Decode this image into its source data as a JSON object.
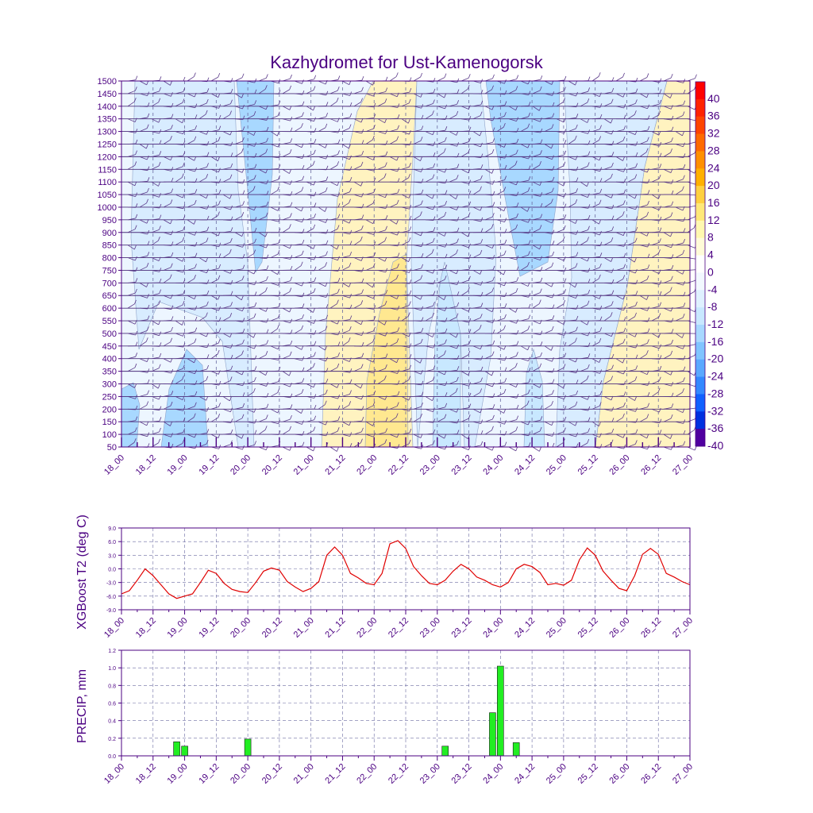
{
  "title": "Kazhydromet for Ust-Kamenogorsk",
  "time_ticks": [
    "18_00",
    "18_12",
    "19_00",
    "19_12",
    "20_00",
    "20_12",
    "21_00",
    "21_12",
    "22_00",
    "22_12",
    "23_00",
    "23_12",
    "24_00",
    "24_12",
    "25_00",
    "25_12",
    "26_00",
    "26_12",
    "27_00"
  ],
  "colors": {
    "axis": "#4b0082",
    "t2_line": "#e00000",
    "precip_bar": "#22ee22",
    "grid": "#6a6aa0",
    "wind_barb": "#5b3a8a"
  },
  "chart_data": [
    {
      "type": "heatmap",
      "title": "Kazhydromet for Ust-Kamenogorsk",
      "description_levels": "vertical axis pressure/height levels",
      "y_ticks": [
        "50",
        "100",
        "150",
        "200",
        "250",
        "300",
        "350",
        "400",
        "450",
        "500",
        "550",
        "600",
        "650",
        "700",
        "750",
        "800",
        "850",
        "900",
        "950",
        "1000",
        "1050",
        "1100",
        "1150",
        "1200",
        "1250",
        "1300",
        "1350",
        "1400",
        "1450",
        "1500"
      ],
      "ylim": [
        50,
        1500
      ],
      "x_ticks": [
        "18_00",
        "18_12",
        "19_00",
        "19_12",
        "20_00",
        "20_12",
        "21_00",
        "21_12",
        "22_00",
        "22_12",
        "23_00",
        "23_12",
        "24_00",
        "24_12",
        "25_00",
        "25_12",
        "26_00",
        "26_12",
        "27_00"
      ],
      "colorbar_labels": [
        "40",
        "36",
        "32",
        "28",
        "24",
        "20",
        "16",
        "12",
        "8",
        "4",
        "0",
        "-4",
        "-8",
        "-12",
        "-16",
        "-20",
        "-24",
        "-28",
        "-32",
        "-36",
        "-40"
      ],
      "colorbar_colors": [
        "#ff0000",
        "#ff2200",
        "#ff4400",
        "#ff6a00",
        "#ff9000",
        "#ffb000",
        "#ffd040",
        "#ffe878",
        "#fff8b0",
        "#fffbd8",
        "#ffffff",
        "#f2f8ff",
        "#dff1ff",
        "#c8e8ff",
        "#a8d8ff",
        "#80c4ff",
        "#5aa8ff",
        "#3388ff",
        "#1060ff",
        "#0030e0",
        "#5000a0"
      ],
      "grid": true,
      "wind_barbs": true
    },
    {
      "type": "line",
      "ylabel": "XGBoost T2 (deg C)",
      "ylim": [
        -9.0,
        9.0
      ],
      "y_ticks": [
        "9.0",
        "6.0",
        "3.0",
        "0.0",
        "-3.0",
        "-6.0",
        "-9.0"
      ],
      "x_ticks": [
        "18_00",
        "18_12",
        "19_00",
        "19_12",
        "20_00",
        "20_12",
        "21_00",
        "21_12",
        "22_00",
        "22_12",
        "23_00",
        "23_12",
        "24_00",
        "24_12",
        "25_00",
        "25_12",
        "26_00",
        "26_12",
        "27_00"
      ],
      "grid": true,
      "series": [
        {
          "x_hours": [
            0,
            3,
            6,
            9,
            12,
            15,
            18,
            21,
            24,
            27,
            30,
            33,
            36,
            39,
            42,
            45,
            48,
            51,
            54,
            57,
            60,
            63,
            66,
            69,
            72,
            75,
            78,
            81,
            84,
            87,
            90,
            93,
            96,
            99,
            102,
            105,
            108,
            111,
            114,
            117,
            120,
            123,
            126,
            129,
            132,
            135,
            138,
            141,
            144,
            147,
            150,
            153,
            156,
            159,
            162,
            165,
            168,
            171,
            174,
            177,
            180,
            183,
            186,
            189,
            192,
            195,
            198,
            201,
            204,
            207,
            210,
            213,
            216
          ],
          "values": [
            -5.5,
            -4.8,
            -2.5,
            0.0,
            -1.5,
            -3.5,
            -5.5,
            -6.5,
            -6.0,
            -5.5,
            -3.0,
            -0.3,
            -1.0,
            -3.2,
            -4.5,
            -5.0,
            -5.2,
            -3.0,
            -0.5,
            0.2,
            -0.3,
            -2.8,
            -4.0,
            -5.0,
            -4.3,
            -2.8,
            3.0,
            4.8,
            3.0,
            -1.0,
            -2.0,
            -3.2,
            -3.5,
            -1.0,
            5.5,
            6.2,
            4.5,
            0.5,
            -1.5,
            -3.2,
            -3.5,
            -2.5,
            -0.5,
            1.0,
            0.0,
            -1.8,
            -2.5,
            -3.5,
            -4.0,
            -3.0,
            0.0,
            1.0,
            0.5,
            -0.8,
            -3.5,
            -3.2,
            -3.6,
            -2.5,
            2.0,
            4.6,
            3.0,
            -0.5,
            -2.5,
            -4.3,
            -4.8,
            -1.5,
            3.2,
            4.5,
            3.2,
            -1.0,
            -1.8,
            -2.8,
            -3.5
          ]
        }
      ]
    },
    {
      "type": "bar",
      "ylabel": "PRECIP, mm",
      "ylim": [
        0.0,
        1.2
      ],
      "y_ticks": [
        "1.2",
        "1.0",
        "0.8",
        "0.6",
        "0.4",
        "0.2",
        "0.0"
      ],
      "x_ticks": [
        "18_00",
        "18_12",
        "19_00",
        "19_12",
        "20_00",
        "20_12",
        "21_00",
        "21_12",
        "22_00",
        "22_12",
        "23_00",
        "23_12",
        "24_00",
        "24_12",
        "25_00",
        "25_12",
        "26_00",
        "26_12",
        "27_00"
      ],
      "grid": true,
      "bars": [
        {
          "x_hours": 21,
          "value": 0.16
        },
        {
          "x_hours": 24,
          "value": 0.11
        },
        {
          "x_hours": 48,
          "value": 0.19
        },
        {
          "x_hours": 123,
          "value": 0.11
        },
        {
          "x_hours": 141,
          "value": 0.49
        },
        {
          "x_hours": 144,
          "value": 1.02
        },
        {
          "x_hours": 150,
          "value": 0.15
        }
      ]
    }
  ]
}
